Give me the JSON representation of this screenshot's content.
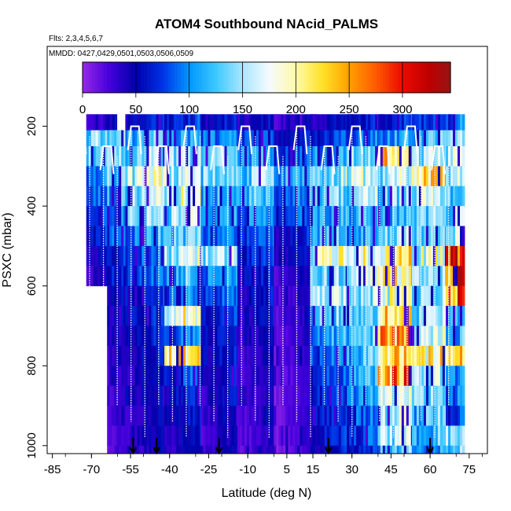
{
  "chart_data": {
    "type": "heatmap",
    "title": "ATOM4 Southbound NAcid_PALMS",
    "subtitle_flights": "Flts: 2,3,4,5,6,7",
    "subtitle_dates": "MMDD: 0427,0429,0501,0503,0506,0509",
    "xlabel": "Latitude (deg N)",
    "ylabel": "PSXC (mbar)",
    "xlim": [
      -87,
      82
    ],
    "ylim": [
      1020,
      0
    ],
    "x_ticks": [
      -85,
      -70,
      -55,
      -40,
      -25,
      -10,
      5,
      15,
      30,
      45,
      60,
      75
    ],
    "x_tick_labels": [
      "-85",
      "-70",
      "-55",
      "-40",
      "-25",
      "-10",
      "5",
      "15",
      "30",
      "45",
      "60",
      "75"
    ],
    "y_ticks": [
      200,
      400,
      600,
      800,
      1000
    ],
    "y_tick_labels": [
      "200",
      "400",
      "600",
      "800",
      "1000"
    ],
    "colorbar": {
      "range": [
        0,
        345
      ],
      "ticks": [
        0,
        50,
        100,
        150,
        200,
        250,
        300
      ],
      "tick_labels": [
        "0",
        "50",
        "100",
        "150",
        "200",
        "250",
        "300"
      ]
    },
    "arrow_latitudes": [
      -54,
      -45,
      -21,
      21,
      60
    ],
    "pressure_bins": [
      170,
      210,
      250,
      300,
      350,
      400,
      450,
      500,
      550,
      600,
      650,
      700,
      750,
      800,
      850,
      900,
      950,
      1000
    ],
    "rows": [
      {
        "lat0": -72,
        "lat1": -61,
        "p0": 210,
        "p1": 560,
        "v0": [
          40,
          150,
          130,
          110,
          90,
          80,
          70,
          55,
          45,
          40,
          35,
          35,
          30,
          30,
          30,
          30,
          30,
          30
        ]
      },
      {
        "lat0": -64,
        "lat1": -50,
        "p0": 230,
        "p1": 1000,
        "v0": [
          50,
          130,
          160,
          140,
          120,
          100,
          90,
          80,
          70,
          60,
          55,
          50,
          45,
          45,
          40,
          40,
          35,
          35
        ]
      },
      {
        "lat0": -57,
        "lat1": -40,
        "p0": 170,
        "p1": 1000,
        "v0": [
          60,
          120,
          150,
          175,
          160,
          140,
          110,
          90,
          80,
          70,
          65,
          60,
          55,
          50,
          50,
          45,
          45,
          40
        ]
      },
      {
        "lat0": -42,
        "lat1": -26,
        "p0": 170,
        "p1": 1000,
        "v0": [
          70,
          110,
          150,
          165,
          180,
          150,
          130,
          170,
          120,
          100,
          190,
          90,
          210,
          80,
          60,
          55,
          50,
          45
        ]
      },
      {
        "lat0": -28,
        "lat1": -12,
        "p0": 170,
        "p1": 1000,
        "v0": [
          60,
          100,
          130,
          150,
          120,
          100,
          90,
          160,
          110,
          80,
          70,
          60,
          60,
          55,
          50,
          45,
          40,
          40
        ]
      },
      {
        "lat0": -14,
        "lat1": 2,
        "p0": 170,
        "p1": 1000,
        "v0": [
          50,
          80,
          110,
          140,
          120,
          100,
          80,
          70,
          60,
          55,
          50,
          45,
          40,
          40,
          35,
          35,
          30,
          30
        ]
      },
      {
        "lat0": 0,
        "lat1": 16,
        "p0": 170,
        "p1": 1000,
        "v0": [
          40,
          60,
          80,
          120,
          100,
          80,
          60,
          50,
          40,
          35,
          30,
          30,
          30,
          25,
          25,
          25,
          25,
          20
        ]
      },
      {
        "lat0": 14,
        "lat1": 30,
        "p0": 170,
        "p1": 1000,
        "v0": [
          50,
          70,
          110,
          150,
          130,
          110,
          120,
          180,
          140,
          160,
          130,
          110,
          90,
          80,
          75,
          70,
          65,
          60
        ]
      },
      {
        "lat0": 28,
        "lat1": 42,
        "p0": 170,
        "p1": 1000,
        "v0": [
          60,
          90,
          140,
          170,
          150,
          130,
          110,
          190,
          160,
          150,
          140,
          130,
          120,
          110,
          100,
          90,
          80,
          70
        ]
      },
      {
        "lat0": 40,
        "lat1": 55,
        "p0": 170,
        "p1": 1000,
        "v0": [
          70,
          110,
          230,
          160,
          140,
          120,
          150,
          210,
          200,
          190,
          230,
          240,
          220,
          260,
          180,
          170,
          150,
          130
        ]
      },
      {
        "lat0": 53,
        "lat1": 68,
        "p0": 170,
        "p1": 1000,
        "v0": [
          80,
          120,
          150,
          220,
          160,
          140,
          130,
          180,
          150,
          140,
          140,
          160,
          200,
          150,
          140,
          130,
          120,
          100
        ]
      },
      {
        "lat0": 66,
        "lat1": 73,
        "p0": 190,
        "p1": 980,
        "v0": [
          90,
          130,
          170,
          150,
          130,
          140,
          160,
          280,
          290,
          270,
          120,
          110,
          210,
          100,
          90,
          80,
          150,
          140
        ]
      }
    ]
  }
}
